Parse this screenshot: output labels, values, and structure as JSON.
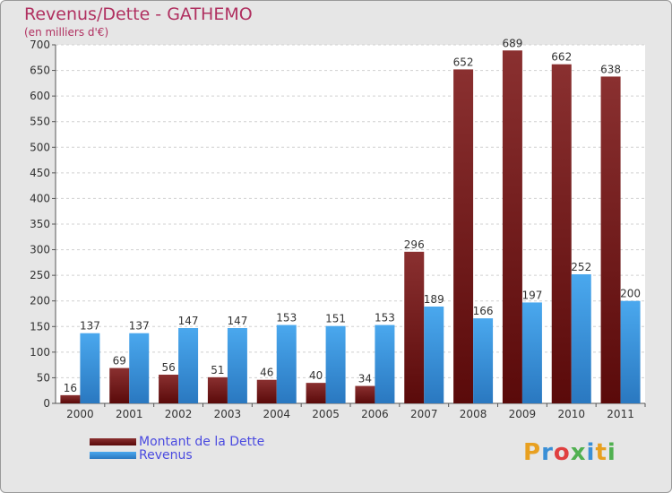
{
  "colors": {
    "debt": "#7a1a1a",
    "revenue": "#3a8fd6",
    "title": "#b03060",
    "legend_text": "#4a4ae0"
  },
  "chart_data": {
    "type": "bar",
    "title": "Revenus/Dette - GATHEMO",
    "subtitle": "(en milliers d'€)",
    "categories": [
      "2000",
      "2001",
      "2002",
      "2003",
      "2004",
      "2005",
      "2006",
      "2007",
      "2008",
      "2009",
      "2010",
      "2011"
    ],
    "series": [
      {
        "name": "Montant de la Dette",
        "values": [
          16,
          69,
          56,
          51,
          46,
          40,
          34,
          296,
          652,
          689,
          662,
          638
        ]
      },
      {
        "name": "Revenus",
        "values": [
          137,
          137,
          147,
          147,
          153,
          151,
          153,
          189,
          166,
          197,
          252,
          200
        ]
      }
    ],
    "ylim": [
      0,
      700
    ],
    "yticks": [
      0,
      50,
      100,
      150,
      200,
      250,
      300,
      350,
      400,
      450,
      500,
      550,
      600,
      650,
      700
    ],
    "grid": true,
    "legend": "bottom-left"
  },
  "logo": {
    "letters": [
      "P",
      "r",
      "o",
      "x",
      "i",
      "t",
      "i"
    ],
    "letter_colors": [
      "#e8a020",
      "#3a8fd6",
      "#e04040",
      "#50b050",
      "#3a8fd6",
      "#e8a020",
      "#50b050"
    ]
  }
}
